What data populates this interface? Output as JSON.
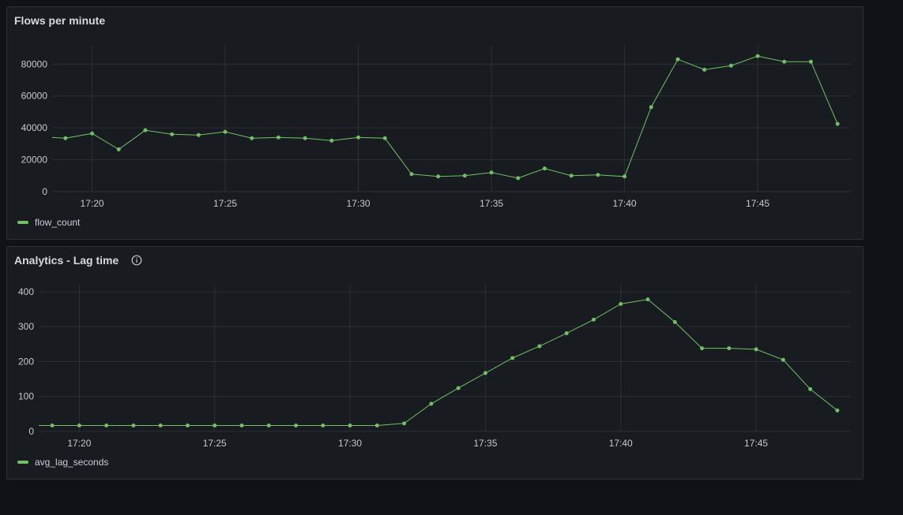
{
  "colors": {
    "series": "#73bf69",
    "grid": "#2c3037"
  },
  "panels": [
    {
      "id": "flows",
      "title": "Flows per minute",
      "has_info": false,
      "legend": "flow_count",
      "chart_data": {
        "type": "line",
        "title": "Flows per minute",
        "xlabel": "",
        "ylabel": "",
        "x_ticks": [
          "17:20",
          "17:25",
          "17:30",
          "17:35",
          "17:40",
          "17:45"
        ],
        "x_start_min": 18.5,
        "x_end_min": 48.5,
        "y_ticks": [
          0,
          20000,
          40000,
          60000,
          80000
        ],
        "ylim": [
          0,
          92000
        ],
        "grid": true,
        "legend_placement": "bottom-left",
        "series": [
          {
            "name": "flow_count",
            "x_min": [
              18.5,
              19,
              20,
              21,
              22,
              23,
              24,
              25,
              26,
              27,
              28,
              29,
              30,
              31,
              32,
              33,
              34,
              35,
              36,
              37,
              38,
              39,
              40,
              41,
              42,
              43,
              44,
              45,
              46,
              47,
              48
            ],
            "values": [
              34000,
              33500,
              36500,
              26500,
              38500,
              36000,
              35500,
              37500,
              33500,
              34000,
              33500,
              32000,
              34000,
              33500,
              11000,
              9500,
              10000,
              12000,
              8500,
              14500,
              10000,
              10500,
              9500,
              53000,
              83000,
              76500,
              79000,
              85000,
              81500,
              81500,
              42500
            ]
          }
        ]
      }
    },
    {
      "id": "lag",
      "title": "Analytics - Lag time",
      "has_info": true,
      "legend": "avg_lag_seconds",
      "chart_data": {
        "type": "line",
        "title": "Analytics - Lag time",
        "xlabel": "",
        "ylabel": "",
        "x_ticks": [
          "17:20",
          "17:25",
          "17:30",
          "17:35",
          "17:40",
          "17:45"
        ],
        "x_start_min": 18.5,
        "x_end_min": 48.5,
        "y_ticks": [
          0,
          100,
          200,
          300,
          400
        ],
        "ylim": [
          0,
          420
        ],
        "grid": true,
        "legend_placement": "bottom-left",
        "series": [
          {
            "name": "avg_lag_seconds",
            "x_min": [
              18.5,
              19,
              20,
              21,
              22,
              23,
              24,
              25,
              26,
              27,
              28,
              29,
              30,
              31,
              32,
              33,
              34,
              35,
              36,
              37,
              38,
              39,
              40,
              41,
              42,
              43,
              44,
              45,
              46,
              47,
              48
            ],
            "values": [
              17,
              17,
              17,
              17,
              17,
              17,
              17,
              17,
              17,
              17,
              17,
              17,
              17,
              17,
              23,
              79,
              124,
              167,
              210,
              244,
              281,
              320,
              365,
              378,
              313,
              238,
              238,
              235,
              205,
              121,
              60
            ]
          }
        ]
      }
    }
  ]
}
